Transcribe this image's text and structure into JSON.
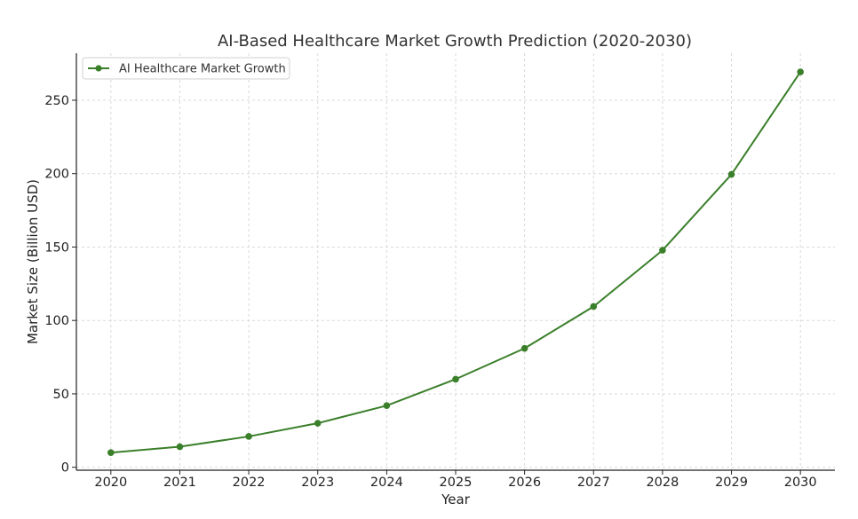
{
  "chart_data": {
    "type": "line",
    "title": "AI-Based Healthcare Market Growth Prediction (2020-2030)",
    "xlabel": "Year",
    "ylabel": "Market Size (Billion USD)",
    "x": [
      "2020",
      "2021",
      "2022",
      "2023",
      "2024",
      "2025",
      "2026",
      "2027",
      "2028",
      "2029",
      "2030"
    ],
    "series": [
      {
        "name": "AI Healthcare Market Growth",
        "values": [
          10,
          14,
          21,
          30,
          42,
          60,
          81,
          109.5,
          147.8,
          199.5,
          269.3
        ],
        "color": "#3a7f2a",
        "marker": "circle"
      }
    ],
    "yticks": [
      0,
      50,
      100,
      150,
      200,
      250
    ],
    "ylim": [
      -2,
      282
    ],
    "xlim": [
      2019.5,
      2030.5
    ],
    "grid": true,
    "legend": "top-left"
  }
}
